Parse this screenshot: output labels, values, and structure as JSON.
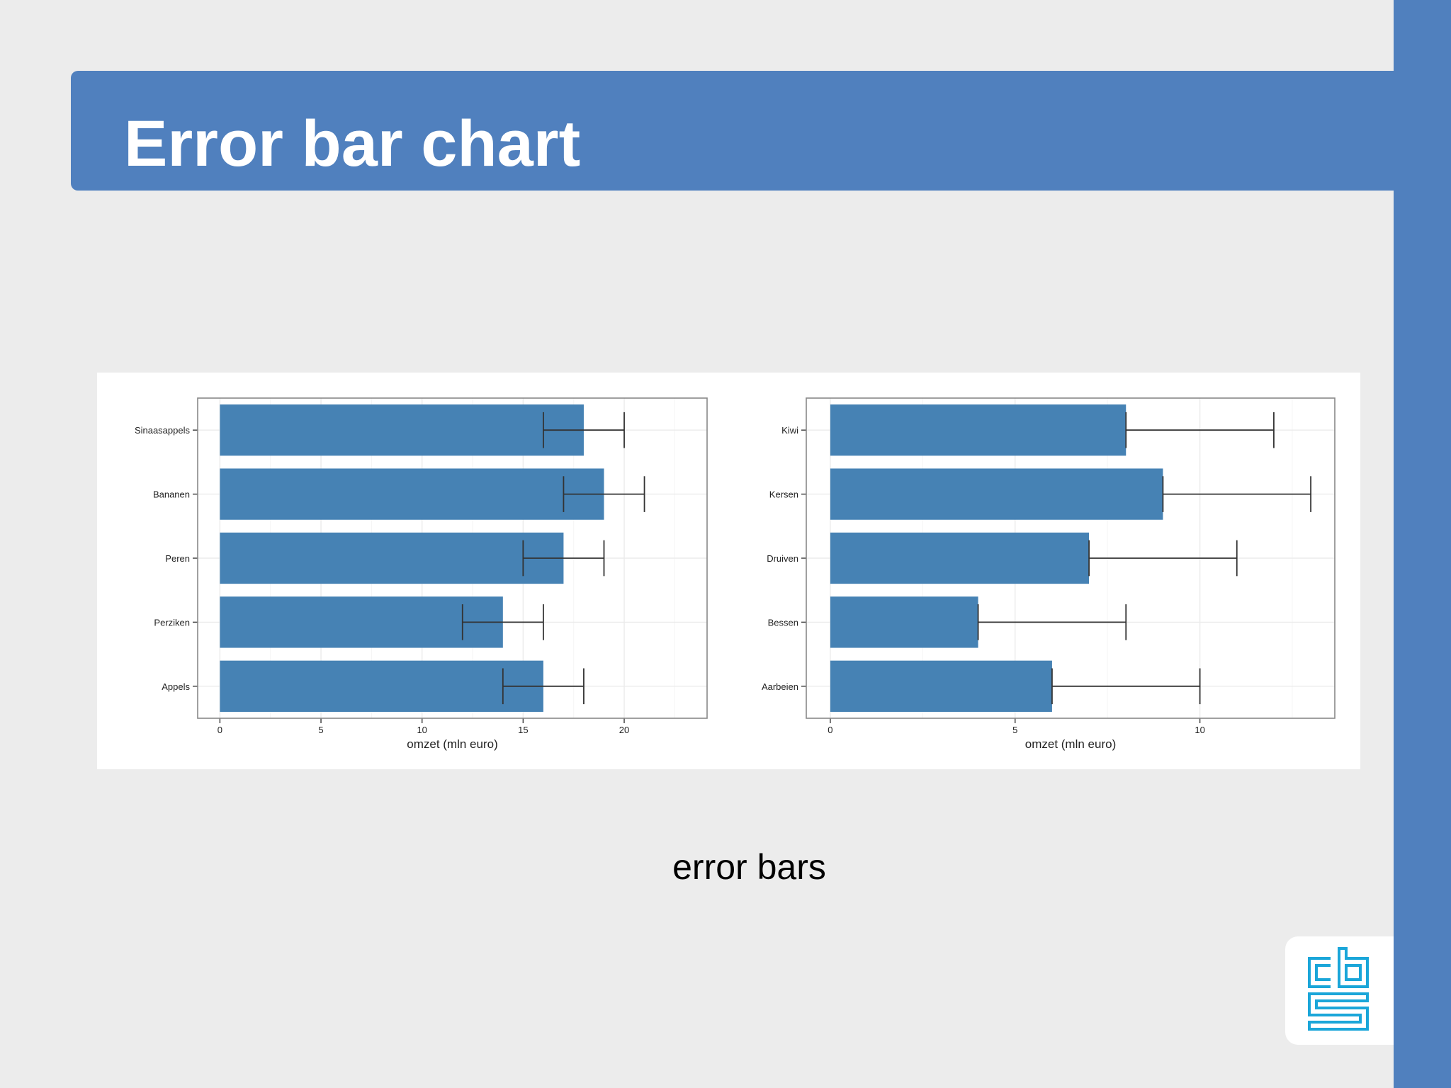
{
  "slide": {
    "title": "Error bar chart",
    "caption": "error bars",
    "colors": {
      "band": "#5080be",
      "background": "#ececec",
      "bar": "#4682b4",
      "logo": "#1aa6d9"
    }
  },
  "chart_data": [
    {
      "type": "bar",
      "orientation": "horizontal",
      "categories": [
        "Sinaasappels",
        "Bananen",
        "Peren",
        "Perziken",
        "Appels"
      ],
      "values": [
        18,
        19,
        17,
        14,
        16
      ],
      "error_low": [
        16,
        17,
        15,
        12,
        14
      ],
      "error_high": [
        20,
        21,
        19,
        16,
        18
      ],
      "xlabel": "omzet (mln euro)",
      "xlim": [
        -1.1,
        24.1
      ],
      "xticks": [
        0,
        5,
        10,
        15,
        20
      ],
      "grid": true
    },
    {
      "type": "bar",
      "orientation": "horizontal",
      "categories": [
        "Kiwi",
        "Kersen",
        "Druiven",
        "Bessen",
        "Aarbeien"
      ],
      "values": [
        8,
        9,
        7,
        4,
        6
      ],
      "error_low": [
        8,
        9,
        7,
        4,
        6
      ],
      "error_high": [
        12,
        13,
        11,
        8,
        10
      ],
      "xlabel": "omzet (mln euro)",
      "xlim": [
        -0.65,
        13.65
      ],
      "xticks": [
        0,
        5,
        10
      ],
      "grid": true
    }
  ]
}
